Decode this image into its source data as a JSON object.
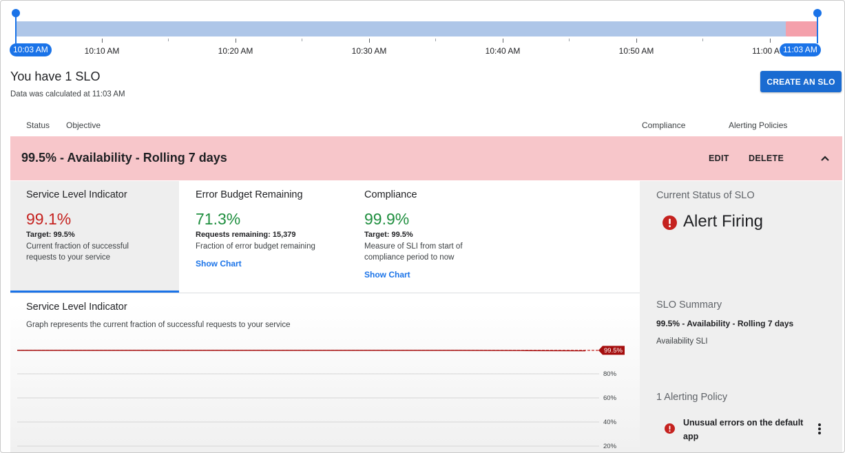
{
  "timeline": {
    "start_label": "10:03 AM",
    "end_label": "11:03 AM",
    "ticks": [
      "10:10 AM",
      "10:20 AM",
      "10:30 AM",
      "10:40 AM",
      "10:50 AM",
      "11:00 A"
    ]
  },
  "header": {
    "title": "You have 1 SLO",
    "subtitle": "Data was calculated at 11:03 AM",
    "create_label": "CREATE AN SLO"
  },
  "columns": {
    "status": "Status",
    "objective": "Objective",
    "compliance": "Compliance",
    "alerting": "Alerting Policies"
  },
  "slo": {
    "title": "99.5% - Availability - Rolling 7 days",
    "edit_label": "EDIT",
    "delete_label": "DELETE",
    "colors": {
      "header_bg": "#f7c6ca",
      "bad": "#c5221f",
      "good": "#1e8e3e",
      "link": "#1a73e8"
    }
  },
  "metrics": {
    "sli": {
      "title": "Service Level Indicator",
      "value": "99.1%",
      "target": "Target: 99.5%",
      "desc1": "Current fraction of successful",
      "desc2": "requests to your service"
    },
    "budget": {
      "title": "Error Budget Remaining",
      "value": "71.3%",
      "target": "Requests remaining: 15,379",
      "desc1": "Fraction of error budget remaining",
      "link": "Show Chart"
    },
    "compliance": {
      "title": "Compliance",
      "value": "99.9%",
      "target": "Target: 99.5%",
      "desc1": "Measure of SLI from start of",
      "desc2": "compliance period to now",
      "link": "Show Chart"
    }
  },
  "chart": {
    "title": "Service Level Indicator",
    "description": "Graph represents the current fraction of successful requests to your service",
    "threshold_label": "99.5%",
    "y_ticks": [
      "80%",
      "60%",
      "40%",
      "20%"
    ]
  },
  "chart_data": {
    "type": "line",
    "title": "Service Level Indicator",
    "ylabel": "",
    "xlabel": "",
    "y_ticks": [
      "80%",
      "60%",
      "40%",
      "20%"
    ],
    "threshold": {
      "label": "99.5%",
      "value": 99.5
    },
    "series": [
      {
        "values": [
          99.5,
          99.5,
          99.5,
          99.5,
          99.5,
          99.5,
          99.5,
          99.5,
          99.3,
          99.1
        ]
      }
    ]
  },
  "side": {
    "status_title": "Current Status of SLO",
    "status_text": "Alert Firing",
    "summary_title": "SLO Summary",
    "summary_name": "99.5% - Availability - Rolling 7 days",
    "summary_type": "Availability SLI",
    "policy_title": "1 Alerting Policy",
    "policy_name": "Unusual errors on the default app"
  }
}
